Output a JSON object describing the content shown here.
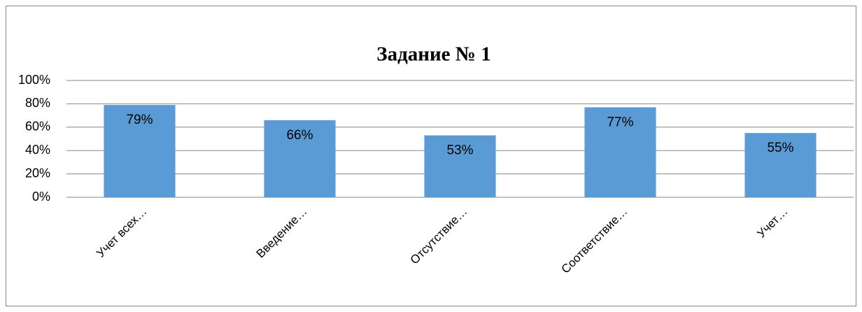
{
  "chart_data": {
    "type": "bar",
    "title": "Задание № 1",
    "categories": [
      "Учет всех…",
      "Введение…",
      "Отсутствие…",
      "Соответствие…",
      "Учет…"
    ],
    "values": [
      79,
      66,
      53,
      77,
      55
    ],
    "value_labels": [
      "79%",
      "66%",
      "53%",
      "77%",
      "55%"
    ],
    "color": "#5b9bd5",
    "ylim": [
      0,
      100
    ],
    "yticks": [
      {
        "value": 0,
        "label": "0%"
      },
      {
        "value": 20,
        "label": "20%"
      },
      {
        "value": 40,
        "label": "40%"
      },
      {
        "value": 60,
        "label": "60%"
      },
      {
        "value": 80,
        "label": "80%"
      },
      {
        "value": 100,
        "label": "100%"
      }
    ],
    "grid": true
  }
}
